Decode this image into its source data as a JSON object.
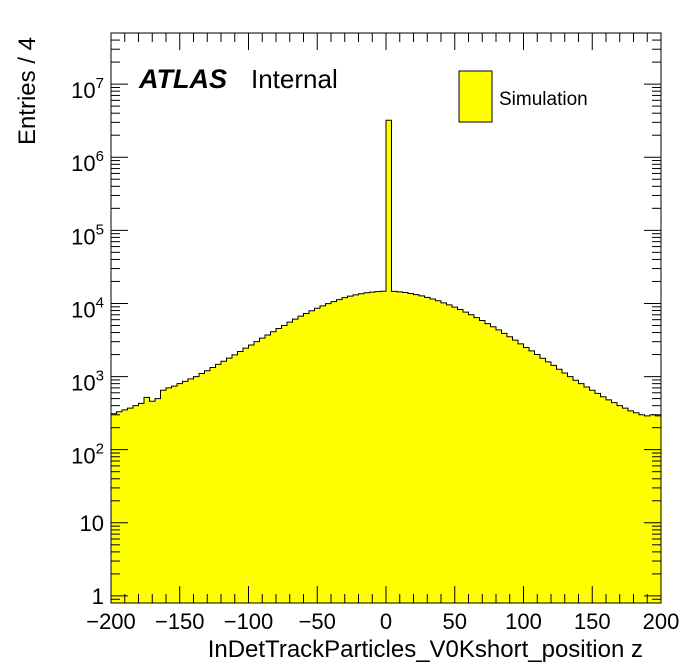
{
  "chart_data": {
    "type": "bar",
    "xlabel": "InDetTrackParticles_V0Kshort_position z",
    "ylabel": "Entries / 4",
    "xlim": [
      -200,
      200
    ],
    "ylim": [
      0.8,
      50000000
    ],
    "y_scale": "log",
    "bin_width": 4,
    "x_ticks": [
      -200,
      -150,
      -100,
      -50,
      0,
      50,
      100,
      150,
      200
    ],
    "x_tick_labels": [
      "−200",
      "−150",
      "−100",
      "−50",
      "0",
      "50",
      "100",
      "150",
      "200"
    ],
    "y_ticks": [
      {
        "value": 1,
        "base": "1",
        "exp": ""
      },
      {
        "value": 10,
        "base": "10",
        "exp": ""
      },
      {
        "value": 100,
        "base": "10",
        "exp": "2"
      },
      {
        "value": 1000,
        "base": "10",
        "exp": "3"
      },
      {
        "value": 10000,
        "base": "10",
        "exp": "4"
      },
      {
        "value": 100000,
        "base": "10",
        "exp": "5"
      },
      {
        "value": 1000000,
        "base": "10",
        "exp": "6"
      },
      {
        "value": 10000000,
        "base": "10",
        "exp": "7"
      }
    ],
    "series": [
      {
        "name": "Simulation",
        "color": "#ffff00",
        "edge_color": "#000000",
        "bin_low_edges": [
          -200,
          -196,
          -192,
          -188,
          -184,
          -180,
          -176,
          -172,
          -168,
          -164,
          -160,
          -156,
          -152,
          -148,
          -144,
          -140,
          -136,
          -132,
          -128,
          -124,
          -120,
          -116,
          -112,
          -108,
          -104,
          -100,
          -96,
          -92,
          -88,
          -84,
          -80,
          -76,
          -72,
          -68,
          -64,
          -60,
          -56,
          -52,
          -48,
          -44,
          -40,
          -36,
          -32,
          -28,
          -24,
          -20,
          -16,
          -12,
          -8,
          -4,
          0,
          4,
          8,
          12,
          16,
          20,
          24,
          28,
          32,
          36,
          40,
          44,
          48,
          52,
          56,
          60,
          64,
          68,
          72,
          76,
          80,
          84,
          88,
          92,
          96,
          100,
          104,
          108,
          112,
          116,
          120,
          124,
          128,
          132,
          136,
          140,
          144,
          148,
          152,
          156,
          160,
          164,
          168,
          172,
          176,
          180,
          184,
          188,
          192,
          196
        ],
        "values": [
          310,
          330,
          350,
          370,
          400,
          430,
          520,
          460,
          500,
          650,
          700,
          740,
          800,
          860,
          930,
          1000,
          1100,
          1200,
          1330,
          1470,
          1620,
          1790,
          1980,
          2200,
          2450,
          2700,
          3000,
          3350,
          3700,
          4100,
          4550,
          5000,
          5550,
          6100,
          6700,
          7300,
          7950,
          8600,
          9250,
          9950,
          10600,
          11300,
          12000,
          12600,
          13100,
          13600,
          14000,
          14300,
          14500,
          14700,
          3200000,
          14600,
          14400,
          14100,
          13700,
          13200,
          12700,
          12100,
          11500,
          10900,
          10200,
          9550,
          8900,
          8250,
          7600,
          7000,
          6400,
          5850,
          5300,
          4800,
          4350,
          3900,
          3500,
          3150,
          2800,
          2500,
          2250,
          2000,
          1780,
          1590,
          1420,
          1260,
          1120,
          1000,
          890,
          800,
          720,
          650,
          590,
          530,
          480,
          440,
          400,
          370,
          340,
          320,
          300,
          290,
          300,
          290
        ]
      }
    ],
    "legend": {
      "entries": [
        "Simulation"
      ],
      "placement": "top-right"
    },
    "annotations": {
      "atlas": "ATLAS",
      "status": "Internal"
    },
    "grid": false
  }
}
